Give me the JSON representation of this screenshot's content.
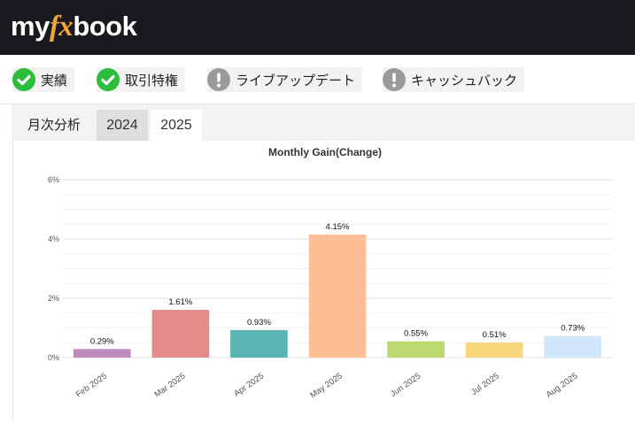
{
  "logo": {
    "part1": "my",
    "part2": "fx",
    "part3": "book"
  },
  "badges": [
    {
      "label": "実績",
      "status": "verified",
      "icon": "check-circle-icon"
    },
    {
      "label": "取引特権",
      "status": "verified",
      "icon": "check-circle-icon"
    },
    {
      "label": "ライブアップデート",
      "status": "unverified",
      "icon": "exclamation-circle-icon"
    },
    {
      "label": "キャッシュバック",
      "status": "unverified",
      "icon": "exclamation-circle-icon"
    }
  ],
  "tabs": {
    "title": "月次分析",
    "items": [
      "2024",
      "2025"
    ],
    "active": "2025"
  },
  "colors": {
    "verified": "#2ebd3a",
    "unverified": "#9a9a9a",
    "topbar": "#1a1a1e",
    "logo_accent": "#f0a73a"
  },
  "chart_data": {
    "type": "bar",
    "title": "Monthly Gain(Change)",
    "xlabel": "",
    "ylabel": "",
    "categories": [
      "Feb 2025",
      "Mar 2025",
      "Apr 2025",
      "May 2025",
      "Jun 2025",
      "Jul 2025",
      "Aug 2025"
    ],
    "values": [
      0.29,
      1.61,
      0.93,
      4.15,
      0.55,
      0.51,
      0.73
    ],
    "value_labels": [
      "0.29%",
      "1.61%",
      "0.93%",
      "4.15%",
      "0.55%",
      "0.51%",
      "0.73%"
    ],
    "bar_colors": [
      "#bf8bbd",
      "#e38a8a",
      "#5bb5b5",
      "#ffbe94",
      "#bcd870",
      "#f8d67a",
      "#cfe6fb"
    ],
    "ylim": [
      0,
      6
    ],
    "yticks": [
      0,
      2,
      4,
      6
    ],
    "ytick_labels": [
      "0%",
      "2%",
      "4%",
      "6%"
    ],
    "grid": true
  }
}
